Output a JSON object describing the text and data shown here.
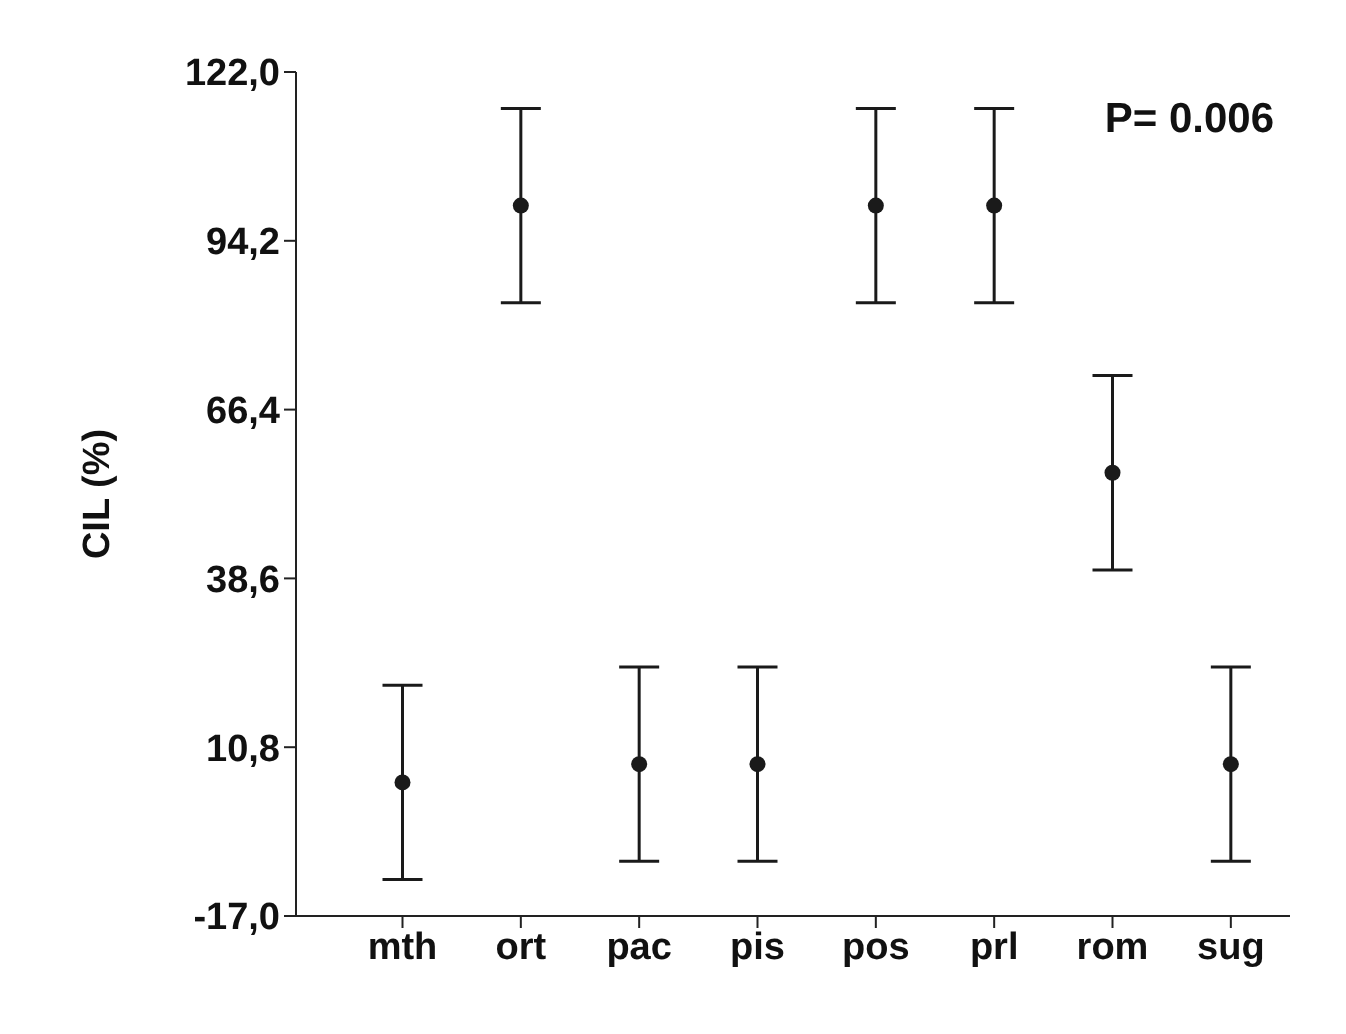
{
  "chart_data": {
    "type": "scatter",
    "ylabel": "CIL (%)",
    "annotations": [
      "P= 0.006"
    ],
    "categories": [
      "mth",
      "ort",
      "pac",
      "pis",
      "pos",
      "prl",
      "rom",
      "sug"
    ],
    "values": [
      5,
      100,
      8,
      8,
      100,
      100,
      56,
      8
    ],
    "errors": [
      16,
      16,
      16,
      16,
      16,
      16,
      16,
      16
    ],
    "color": "#1a1a1a",
    "marker": "circle",
    "ylim": [
      -17,
      122
    ],
    "yticks": [
      {
        "value": -17,
        "label": "-17,0"
      },
      {
        "value": 10.8,
        "label": "10,8"
      },
      {
        "value": 38.6,
        "label": "38,6"
      },
      {
        "value": 66.4,
        "label": "66,4"
      },
      {
        "value": 94.2,
        "label": "94,2"
      },
      {
        "value": 122,
        "label": "122,0"
      }
    ]
  }
}
